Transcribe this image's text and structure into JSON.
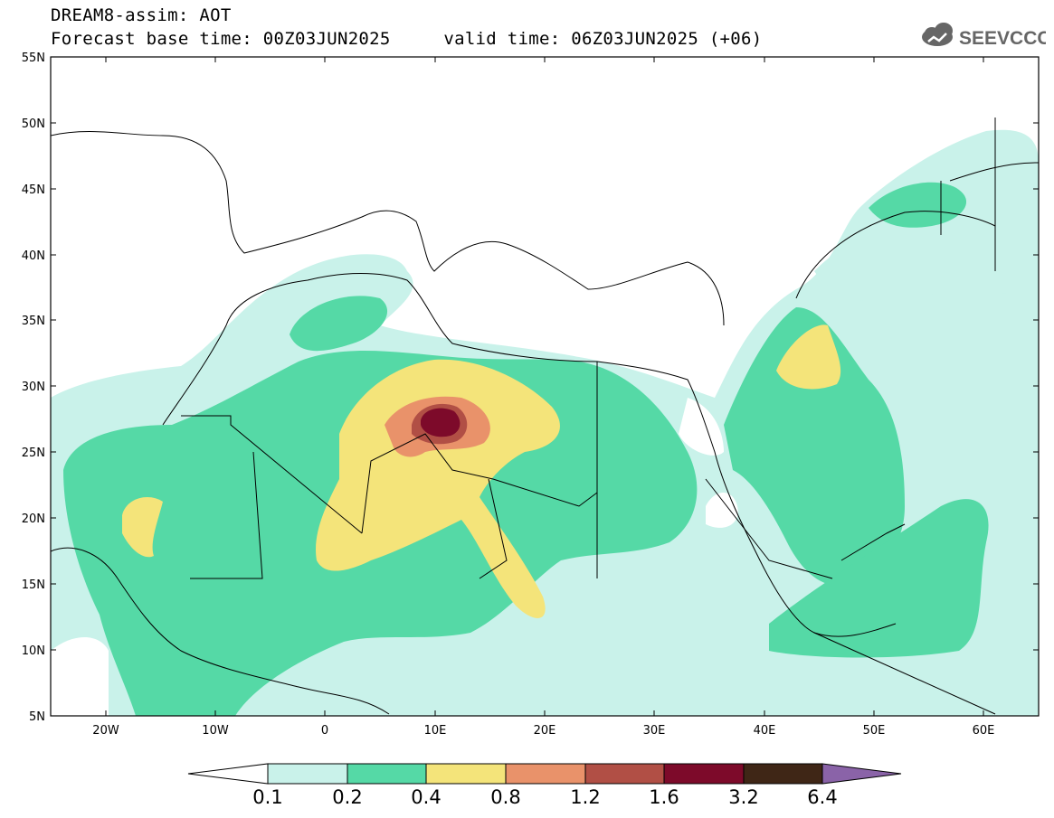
{
  "header": {
    "title_line1": "DREAM8-assim: AOT",
    "title_line2": "Forecast base time: 00Z03JUN2025     valid time: 06Z03JUN2025 (+06)",
    "logo_text": "SEEVCCC"
  },
  "map": {
    "variable": "AOT",
    "lon_range": [
      -25,
      65
    ],
    "lat_range": [
      5,
      55
    ],
    "lat_ticks": [
      "5N",
      "10N",
      "15N",
      "20N",
      "25N",
      "30N",
      "35N",
      "40N",
      "45N",
      "50N",
      "55N"
    ],
    "lon_ticks": [
      "20W",
      "10W",
      "0",
      "10E",
      "20E",
      "30E",
      "40E",
      "50E",
      "60E"
    ]
  },
  "legend": {
    "levels": [
      "0.1",
      "0.2",
      "0.4",
      "0.8",
      "1.2",
      "1.6",
      "3.2",
      "6.4"
    ],
    "colors": [
      "#ffffff",
      "#c9f2ea",
      "#55d9a6",
      "#f4e47a",
      "#e9926a",
      "#b14f45",
      "#7d0a2a",
      "#3f2616",
      "#8a63a8"
    ]
  }
}
